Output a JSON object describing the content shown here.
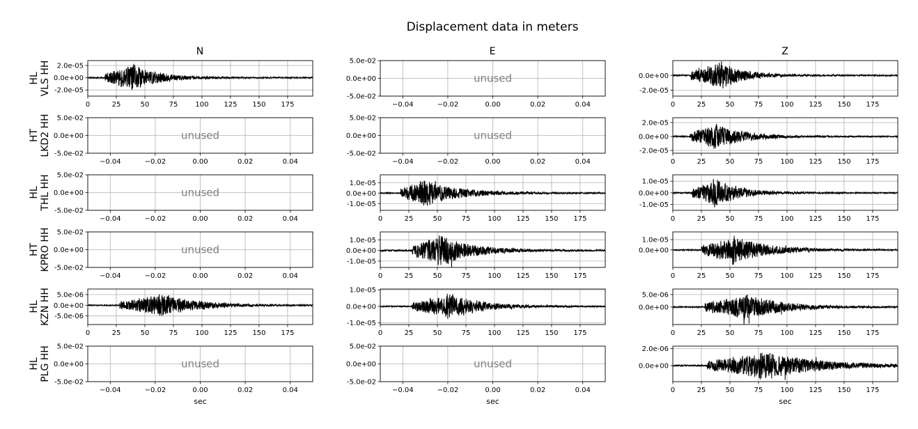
{
  "chart_data": {
    "type": "line",
    "title": "Displacement data in meters",
    "columns": [
      "N",
      "E",
      "Z"
    ],
    "xlabel": "sec",
    "grid": true,
    "unused_label": "unused",
    "rows": [
      {
        "label_network": "HL",
        "label_station": "VLS HH",
        "panels": [
          {
            "component": "N",
            "used": true,
            "xlim": [
              0,
              197
            ],
            "xticks": [
              "0",
              "25",
              "50",
              "75",
              "100",
              "125",
              "150",
              "175"
            ],
            "ylim": [
              -3e-05,
              2.8e-05
            ],
            "yticks": [
              {
                "v": 2e-05,
                "label": "2.0e-05"
              },
              {
                "v": 0,
                "label": "0.0e+00"
              },
              {
                "v": -2e-05,
                "label": "-2.0e-05"
              }
            ],
            "onset": 15,
            "peak_time": 38,
            "peak_amp": 2.6e-05,
            "decay": 22,
            "seed": 11
          },
          {
            "component": "E",
            "used": false,
            "xlim": [
              -0.05,
              0.05
            ],
            "xticks": [
              "−0.04",
              "−0.02",
              "0.00",
              "0.02",
              "0.04"
            ],
            "yticks": [
              "5.0e-02",
              "0.0e+00",
              "-5.0e-02"
            ]
          },
          {
            "component": "Z",
            "used": true,
            "xlim": [
              0,
              197
            ],
            "xticks": [
              "0",
              "25",
              "50",
              "75",
              "100",
              "125",
              "150",
              "175"
            ],
            "ylim": [
              -2.8e-05,
              2e-05
            ],
            "yticks": [
              {
                "v": 0,
                "label": "0.0e+00"
              },
              {
                "v": -2e-05,
                "label": "-2.0e-05"
              }
            ],
            "onset": 16,
            "peak_time": 40,
            "peak_amp": 2.2e-05,
            "decay": 20,
            "seed": 23
          }
        ]
      },
      {
        "label_network": "HT",
        "label_station": "LKD2 HH",
        "panels": [
          {
            "component": "N",
            "used": false,
            "xlim": [
              -0.05,
              0.05
            ],
            "xticks": [
              "−0.04",
              "−0.02",
              "0.00",
              "0.02",
              "0.04"
            ],
            "yticks": [
              "5.0e-02",
              "0.0e+00",
              "-5.0e-02"
            ]
          },
          {
            "component": "E",
            "used": false,
            "xlim": [
              -0.05,
              0.05
            ],
            "xticks": [
              "−0.04",
              "−0.02",
              "0.00",
              "0.02",
              "0.04"
            ],
            "yticks": [
              "5.0e-02",
              "0.0e+00",
              "-5.0e-02"
            ]
          },
          {
            "component": "Z",
            "used": true,
            "xlim": [
              0,
              197
            ],
            "xticks": [
              "0",
              "25",
              "50",
              "75",
              "100",
              "125",
              "150",
              "175"
            ],
            "ylim": [
              -2.4e-05,
              2.7e-05
            ],
            "yticks": [
              {
                "v": 2e-05,
                "label": "2.0e-05"
              },
              {
                "v": 0,
                "label": "0.0e+00"
              },
              {
                "v": -2e-05,
                "label": "-2.0e-05"
              }
            ],
            "onset": 15,
            "peak_time": 35,
            "peak_amp": 2.2e-05,
            "decay": 25,
            "seed": 37
          }
        ]
      },
      {
        "label_network": "HL",
        "label_station": "THL HH",
        "panels": [
          {
            "component": "N",
            "used": false,
            "xlim": [
              -0.05,
              0.05
            ],
            "xticks": [
              "−0.04",
              "−0.02",
              "0.00",
              "0.02",
              "0.04"
            ],
            "yticks": [
              "5.0e-02",
              "0.0e+00",
              "-5.0e-02"
            ]
          },
          {
            "component": "E",
            "used": true,
            "xlim": [
              0,
              197
            ],
            "xticks": [
              "0",
              "25",
              "50",
              "75",
              "100",
              "125",
              "150",
              "175"
            ],
            "ylim": [
              -1.65e-05,
              1.75e-05
            ],
            "yticks": [
              {
                "v": 1e-05,
                "label": "1.0e-05"
              },
              {
                "v": 0,
                "label": "0.0e+00"
              },
              {
                "v": -1e-05,
                "label": "-1.0e-05"
              }
            ],
            "onset": 18,
            "peak_time": 35,
            "peak_amp": 1.5e-05,
            "decay": 30,
            "seed": 41
          },
          {
            "component": "Z",
            "used": true,
            "xlim": [
              0,
              197
            ],
            "xticks": [
              "0",
              "25",
              "50",
              "75",
              "100",
              "125",
              "150",
              "175"
            ],
            "ylim": [
              -1.5e-05,
              1.55e-05
            ],
            "yticks": [
              {
                "v": 1e-05,
                "label": "1.0e-05"
              },
              {
                "v": 0,
                "label": "0.0e+00"
              },
              {
                "v": -1e-05,
                "label": "-1.0e-05"
              }
            ],
            "onset": 17,
            "peak_time": 35,
            "peak_amp": 1.4e-05,
            "decay": 22,
            "seed": 53
          }
        ]
      },
      {
        "label_network": "HT",
        "label_station": "KPRO HH",
        "panels": [
          {
            "component": "N",
            "used": false,
            "xlim": [
              -0.05,
              0.05
            ],
            "xticks": [
              "−0.04",
              "−0.02",
              "0.00",
              "0.02",
              "0.04"
            ],
            "yticks": [
              "5.0e-02",
              "0.0e+00",
              "-5.0e-02"
            ]
          },
          {
            "component": "E",
            "used": true,
            "xlim": [
              0,
              197
            ],
            "xticks": [
              "0",
              "25",
              "50",
              "75",
              "100",
              "125",
              "150",
              "175"
            ],
            "ylim": [
              -1.6e-05,
              1.75e-05
            ],
            "yticks": [
              {
                "v": 1e-05,
                "label": "1.0e-05"
              },
              {
                "v": 0,
                "label": "0.0e+00"
              },
              {
                "v": -1e-05,
                "label": "-1.0e-05"
              }
            ],
            "onset": 28,
            "peak_time": 50,
            "peak_amp": 1.7e-05,
            "decay": 28,
            "seed": 67
          },
          {
            "component": "Z",
            "used": true,
            "xlim": [
              0,
              197
            ],
            "xticks": [
              "0",
              "25",
              "50",
              "75",
              "100",
              "125",
              "150",
              "175"
            ],
            "ylim": [
              -1.7e-05,
              1.75e-05
            ],
            "yticks": [
              {
                "v": 1e-05,
                "label": "1.0e-05"
              },
              {
                "v": 0,
                "label": "0.0e+00"
              }
            ],
            "onset": 25,
            "peak_time": 52,
            "peak_amp": 1.6e-05,
            "decay": 28,
            "seed": 71
          }
        ]
      },
      {
        "label_network": "HL",
        "label_station": "KZN HH",
        "panels": [
          {
            "component": "N",
            "used": true,
            "xlim": [
              0,
              197
            ],
            "xticks": [
              "0",
              "25",
              "50",
              "75",
              "100",
              "125",
              "150",
              "175"
            ],
            "ylim": [
              -9e-06,
              7.6e-06
            ],
            "yticks": [
              {
                "v": 5e-06,
                "label": "5.0e-06"
              },
              {
                "v": 0,
                "label": "0.0e+00"
              },
              {
                "v": -5e-06,
                "label": "-5.0e-06"
              }
            ],
            "onset": 28,
            "peak_time": 62,
            "peak_amp": 6.6e-06,
            "decay": 30,
            "seed": 83
          },
          {
            "component": "E",
            "used": true,
            "xlim": [
              0,
              197
            ],
            "xticks": [
              "0",
              "25",
              "50",
              "75",
              "100",
              "125",
              "150",
              "175"
            ],
            "ylim": [
              -1.1e-05,
              1.05e-05
            ],
            "yticks": [
              {
                "v": 1e-05,
                "label": "1.0e-05"
              },
              {
                "v": 0,
                "label": "0.0e+00"
              },
              {
                "v": -1e-05,
                "label": "-1.0e-05"
              }
            ],
            "onset": 28,
            "peak_time": 58,
            "peak_amp": 8.8e-06,
            "decay": 28,
            "seed": 97
          },
          {
            "component": "Z",
            "used": true,
            "xlim": [
              0,
              197
            ],
            "xticks": [
              "0",
              "25",
              "50",
              "75",
              "100",
              "125",
              "150",
              "175"
            ],
            "ylim": [
              -7e-06,
              7.2e-06
            ],
            "yticks": [
              {
                "v": 5e-06,
                "label": "5.0e-06"
              },
              {
                "v": 0,
                "label": "0.0e+00"
              }
            ],
            "onset": 28,
            "peak_time": 62,
            "peak_amp": 6.3e-06,
            "decay": 30,
            "seed": 101
          }
        ]
      },
      {
        "label_network": "HL",
        "label_station": "PLG HH",
        "panels": [
          {
            "component": "N",
            "used": false,
            "xlim": [
              -0.05,
              0.05
            ],
            "xticks": [
              "−0.04",
              "−0.02",
              "0.00",
              "0.02",
              "0.04"
            ],
            "yticks": [
              "5.0e-02",
              "0.0e+00",
              "-5.0e-02"
            ]
          },
          {
            "component": "E",
            "used": false,
            "xlim": [
              -0.05,
              0.05
            ],
            "xticks": [
              "−0.04",
              "−0.02",
              "0.00",
              "0.02",
              "0.04"
            ],
            "yticks": [
              "5.0e-02",
              "0.0e+00",
              "-5.0e-02"
            ]
          },
          {
            "component": "Z",
            "used": true,
            "xlim": [
              0,
              197
            ],
            "xticks": [
              "0",
              "25",
              "50",
              "75",
              "100",
              "125",
              "150",
              "175"
            ],
            "ylim": [
              -1.9e-06,
              2.3e-06
            ],
            "yticks": [
              {
                "v": 2e-06,
                "label": "2.0e-06"
              },
              {
                "v": 0,
                "label": "0.0e+00"
              }
            ],
            "onset": 30,
            "peak_time": 76,
            "peak_amp": 2e-06,
            "decay": 45,
            "seed": 113
          }
        ]
      }
    ]
  }
}
